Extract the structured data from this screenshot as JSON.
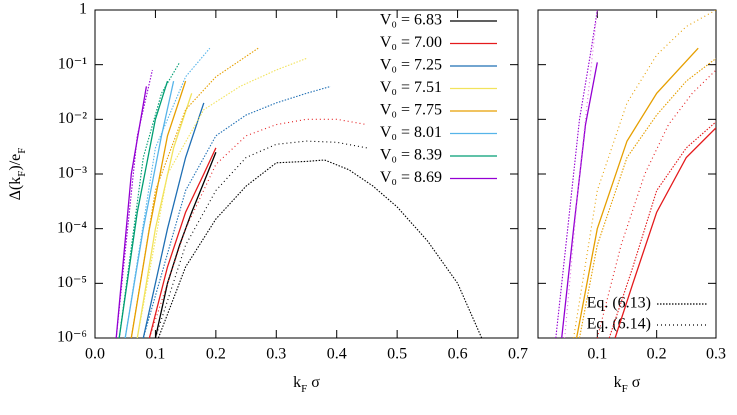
{
  "charts": [
    {
      "type": "line",
      "log_y": true,
      "ylabel": [
        "Δ(k",
        "F",
        ")/e",
        "F"
      ],
      "xlabel": [
        "k",
        "F",
        " σ"
      ],
      "xlim": [
        0,
        0.7
      ],
      "xticks": [
        {
          "value": 0,
          "label": "0.0"
        },
        0.1,
        0.2,
        0.3,
        0.4,
        0.5,
        0.6,
        0.7
      ],
      "ylim": [
        1e-06,
        1
      ],
      "yticks": [
        {
          "value": 1e-06,
          "label": "10⁻⁶"
        },
        {
          "value": 1e-05,
          "label": "10⁻⁵"
        },
        {
          "value": 0.0001,
          "label": "10⁻⁴"
        },
        {
          "value": 0.001,
          "label": "10⁻³"
        },
        {
          "value": 0.01,
          "label": "10⁻²"
        },
        {
          "value": 0.1,
          "label": "10⁻¹"
        },
        1
      ],
      "show_ytick_labels": true,
      "legend": "top-right",
      "series": [
        {
          "name": "V₀ = 6.83",
          "color": "#000000",
          "lines": [
            {
              "style": "solid",
              "x": [
                0.1,
                0.12,
                0.14,
                0.16,
                0.18,
                0.2
              ],
              "values": [
                1e-06,
                1e-05,
                5e-05,
                0.0002,
                0.0007,
                0.0025
              ]
            },
            {
              "style": "dense",
              "x": [
                0.105,
                0.15,
                0.2,
                0.25,
                0.3,
                0.35,
                0.38,
                0.42,
                0.46,
                0.5,
                0.55,
                0.6,
                0.64
              ],
              "values": [
                1e-06,
                2e-05,
                0.00015,
                0.0006,
                0.0016,
                0.0017,
                0.0018,
                0.0012,
                0.0006,
                0.00025,
                6e-05,
                1e-05,
                1e-06
              ]
            },
            {
              "style": "sparse",
              "x": [
                0.1,
                0.15,
                0.2,
                0.25,
                0.3,
                0.35,
                0.4,
                0.45
              ],
              "values": [
                1e-06,
                5e-05,
                0.0005,
                0.002,
                0.0035,
                0.004,
                0.0038,
                0.003
              ]
            }
          ]
        },
        {
          "name": "V₀ = 7.00",
          "color": "#e41a1c",
          "lines": [
            {
              "style": "solid",
              "x": [
                0.09,
                0.12,
                0.15,
                0.18,
                0.2
              ],
              "values": [
                1e-06,
                2e-05,
                0.0002,
                0.001,
                0.003
              ]
            },
            {
              "style": "sparse",
              "x": [
                0.09,
                0.15,
                0.2,
                0.25,
                0.3,
                0.35,
                0.4,
                0.45
              ],
              "values": [
                1e-06,
                0.0001,
                0.0015,
                0.005,
                0.008,
                0.01,
                0.01,
                0.008
              ]
            }
          ]
        },
        {
          "name": "V₀ = 7.25",
          "color": "#1f6fb4",
          "lines": [
            {
              "style": "solid",
              "x": [
                0.08,
                0.12,
                0.15,
                0.18
              ],
              "values": [
                1e-06,
                0.0001,
                0.002,
                0.02
              ]
            },
            {
              "style": "dense",
              "x": [
                0.08,
                0.15,
                0.2,
                0.25,
                0.3,
                0.35,
                0.39
              ],
              "values": [
                1e-06,
                0.0005,
                0.005,
                0.012,
                0.02,
                0.03,
                0.04
              ]
            }
          ]
        },
        {
          "name": "V₀ = 7.51",
          "color": "#f2e35c",
          "lines": [
            {
              "style": "solid",
              "x": [
                0.07,
                0.1,
                0.13,
                0.16
              ],
              "values": [
                1e-06,
                0.0001,
                0.003,
                0.03
              ]
            },
            {
              "style": "dense",
              "x": [
                0.07,
                0.12,
                0.18,
                0.24,
                0.3,
                0.35
              ],
              "values": [
                1e-06,
                0.001,
                0.015,
                0.04,
                0.08,
                0.13
              ]
            }
          ]
        },
        {
          "name": "V₀ = 7.75",
          "color": "#e69f00",
          "lines": [
            {
              "style": "solid",
              "x": [
                0.06,
                0.09,
                0.12,
                0.15
              ],
              "values": [
                1e-06,
                0.0001,
                0.005,
                0.05
              ]
            },
            {
              "style": "dense",
              "x": [
                0.06,
                0.1,
                0.15,
                0.2,
                0.27
              ],
              "values": [
                1e-06,
                0.0005,
                0.015,
                0.06,
                0.2
              ]
            }
          ]
        },
        {
          "name": "V₀ = 8.01",
          "color": "#56b4e9",
          "lines": [
            {
              "style": "solid",
              "x": [
                0.05,
                0.08,
                0.11,
                0.13
              ],
              "values": [
                1e-06,
                0.0001,
                0.005,
                0.05
              ]
            },
            {
              "style": "dense",
              "x": [
                0.05,
                0.1,
                0.15,
                0.19
              ],
              "values": [
                1e-06,
                0.003,
                0.06,
                0.2
              ]
            }
          ]
        },
        {
          "name": "V₀ = 8.39",
          "color": "#009e73",
          "lines": [
            {
              "style": "solid",
              "x": [
                0.04,
                0.07,
                0.1,
                0.12
              ],
              "values": [
                1e-06,
                0.0002,
                0.01,
                0.05
              ]
            },
            {
              "style": "dense",
              "x": [
                0.04,
                0.08,
                0.11,
                0.14
              ],
              "values": [
                1e-06,
                0.002,
                0.03,
                0.11
              ]
            }
          ]
        },
        {
          "name": "V₀ = 8.69",
          "color": "#9400d3",
          "lines": [
            {
              "style": "solid",
              "x": [
                0.035,
                0.06,
                0.085
              ],
              "values": [
                1e-06,
                0.001,
                0.04
              ]
            },
            {
              "style": "dense",
              "x": [
                0.035,
                0.07,
                0.095
              ],
              "values": [
                1e-06,
                0.005,
                0.08
              ]
            }
          ]
        }
      ]
    },
    {
      "type": "line",
      "log_y": true,
      "xlabel": [
        "k",
        "F",
        " σ"
      ],
      "xlim": [
        0,
        0.3
      ],
      "xticks": [
        0.1,
        0.2,
        0.3
      ],
      "ylim": [
        1e-06,
        1
      ],
      "yticks": [
        1e-06,
        1e-05,
        0.0001,
        0.001,
        0.01,
        0.1,
        1
      ],
      "show_ytick_labels": false,
      "legend": "bottom-right",
      "legend_entries": [
        {
          "label": "Eq. (6.13)",
          "style": "dense"
        },
        {
          "label": "Eq. (6.14)",
          "style": "sparse"
        }
      ],
      "series": [
        {
          "color": "#e41a1c",
          "lines": [
            {
              "style": "solid",
              "x": [
                0.13,
                0.16,
                0.2,
                0.25,
                0.3
              ],
              "values": [
                1e-06,
                1e-05,
                0.0002,
                0.002,
                0.007
              ]
            },
            {
              "style": "sparse",
              "x": [
                0.1,
                0.14,
                0.18,
                0.22,
                0.26,
                0.3
              ],
              "values": [
                1e-06,
                5e-05,
                0.001,
                0.008,
                0.03,
                0.08
              ]
            },
            {
              "style": "dense",
              "x": [
                0.12,
                0.16,
                0.2,
                0.25,
                0.3
              ],
              "values": [
                1e-06,
                2e-05,
                0.0005,
                0.003,
                0.009
              ]
            }
          ]
        },
        {
          "color": "#e69f00",
          "lines": [
            {
              "style": "solid",
              "x": [
                0.065,
                0.1,
                0.15,
                0.2,
                0.27
              ],
              "values": [
                1e-06,
                0.0001,
                0.004,
                0.03,
                0.2
              ]
            },
            {
              "style": "sparse",
              "x": [
                0.06,
                0.1,
                0.15,
                0.2,
                0.25,
                0.3
              ],
              "values": [
                1e-06,
                0.0005,
                0.02,
                0.15,
                0.5,
                1
              ]
            },
            {
              "style": "dense",
              "x": [
                0.07,
                0.1,
                0.15,
                0.2,
                0.25,
                0.3
              ],
              "values": [
                1e-06,
                5e-05,
                0.002,
                0.012,
                0.05,
                0.13
              ]
            }
          ]
        },
        {
          "color": "#9400d3",
          "lines": [
            {
              "style": "solid",
              "x": [
                0.04,
                0.06,
                0.08,
                0.1
              ],
              "values": [
                1e-06,
                0.0001,
                0.008,
                0.11
              ]
            },
            {
              "style": "dense",
              "x": [
                0.03,
                0.05,
                0.07,
                0.09,
                0.1
              ],
              "values": [
                1e-06,
                0.0001,
                0.01,
                0.2,
                1
              ]
            }
          ]
        },
        {
          "color": "#e070e0",
          "lines": [
            {
              "style": "sparse",
              "x": [
                0.045,
                0.07,
                0.09,
                0.1
              ],
              "values": [
                1e-06,
                0.001,
                0.1,
                1
              ]
            }
          ]
        }
      ]
    }
  ]
}
